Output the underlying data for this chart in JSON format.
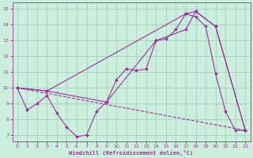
{
  "xlabel": "Windchill (Refroidissement éolien,°C)",
  "bg_color": "#cceedd",
  "grid_color": "#aacccc",
  "line_color": "#993399",
  "xlim_min": -0.5,
  "xlim_max": 23.5,
  "ylim_min": 6.6,
  "ylim_max": 15.4,
  "yticks": [
    7,
    8,
    9,
    10,
    11,
    12,
    13,
    14,
    15
  ],
  "xticks": [
    0,
    1,
    2,
    3,
    4,
    5,
    6,
    7,
    8,
    9,
    10,
    11,
    12,
    13,
    14,
    15,
    16,
    17,
    18,
    19,
    20,
    21,
    22,
    23
  ],
  "line1_x": [
    0,
    1,
    2,
    3,
    4,
    5,
    6,
    7,
    8,
    9,
    10,
    11,
    12,
    13,
    14,
    15,
    16,
    17,
    18,
    19,
    20,
    21,
    22,
    23
  ],
  "line1_y": [
    10.0,
    8.6,
    9.0,
    9.5,
    8.4,
    7.5,
    6.9,
    7.0,
    8.5,
    9.1,
    10.5,
    11.2,
    11.1,
    11.2,
    13.0,
    13.1,
    13.7,
    14.7,
    14.5,
    13.9,
    10.9,
    8.5,
    7.3,
    7.3
  ],
  "line2_x": [
    0,
    3,
    17,
    18,
    20,
    23
  ],
  "line2_y": [
    10.0,
    9.8,
    14.7,
    14.85,
    13.9,
    7.3
  ],
  "line3_x": [
    0,
    3,
    9,
    14,
    17,
    18,
    20,
    23
  ],
  "line3_y": [
    10.0,
    9.8,
    9.1,
    13.0,
    13.7,
    14.85,
    13.9,
    7.3
  ],
  "line4_x": [
    0,
    23
  ],
  "line4_y": [
    10.0,
    7.3
  ]
}
